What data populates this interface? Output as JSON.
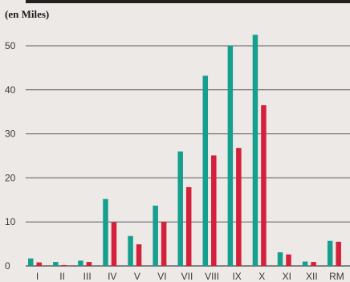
{
  "chart_data": {
    "type": "bar",
    "title": "",
    "unit_label": "(en Miles)",
    "xlabel": "",
    "ylabel": "",
    "ylim": [
      0,
      55
    ],
    "yticks": [
      0,
      10,
      20,
      30,
      40,
      50
    ],
    "grid": true,
    "legend": "none",
    "categories": [
      "I",
      "II",
      "III",
      "IV",
      "V",
      "VI",
      "VII",
      "VIII",
      "IX",
      "X",
      "XI",
      "XII",
      "RM"
    ],
    "series": [
      {
        "color": "#169f8e",
        "values": [
          1.7,
          0.9,
          1.2,
          15.2,
          6.8,
          13.7,
          26.0,
          43.2,
          50.0,
          52.5,
          3.1,
          1.0,
          5.7
        ]
      },
      {
        "color": "#d4203a",
        "values": [
          0.8,
          0.2,
          0.9,
          9.9,
          4.9,
          10.0,
          17.9,
          25.1,
          26.8,
          36.5,
          2.6,
          0.9,
          5.5
        ]
      }
    ]
  }
}
